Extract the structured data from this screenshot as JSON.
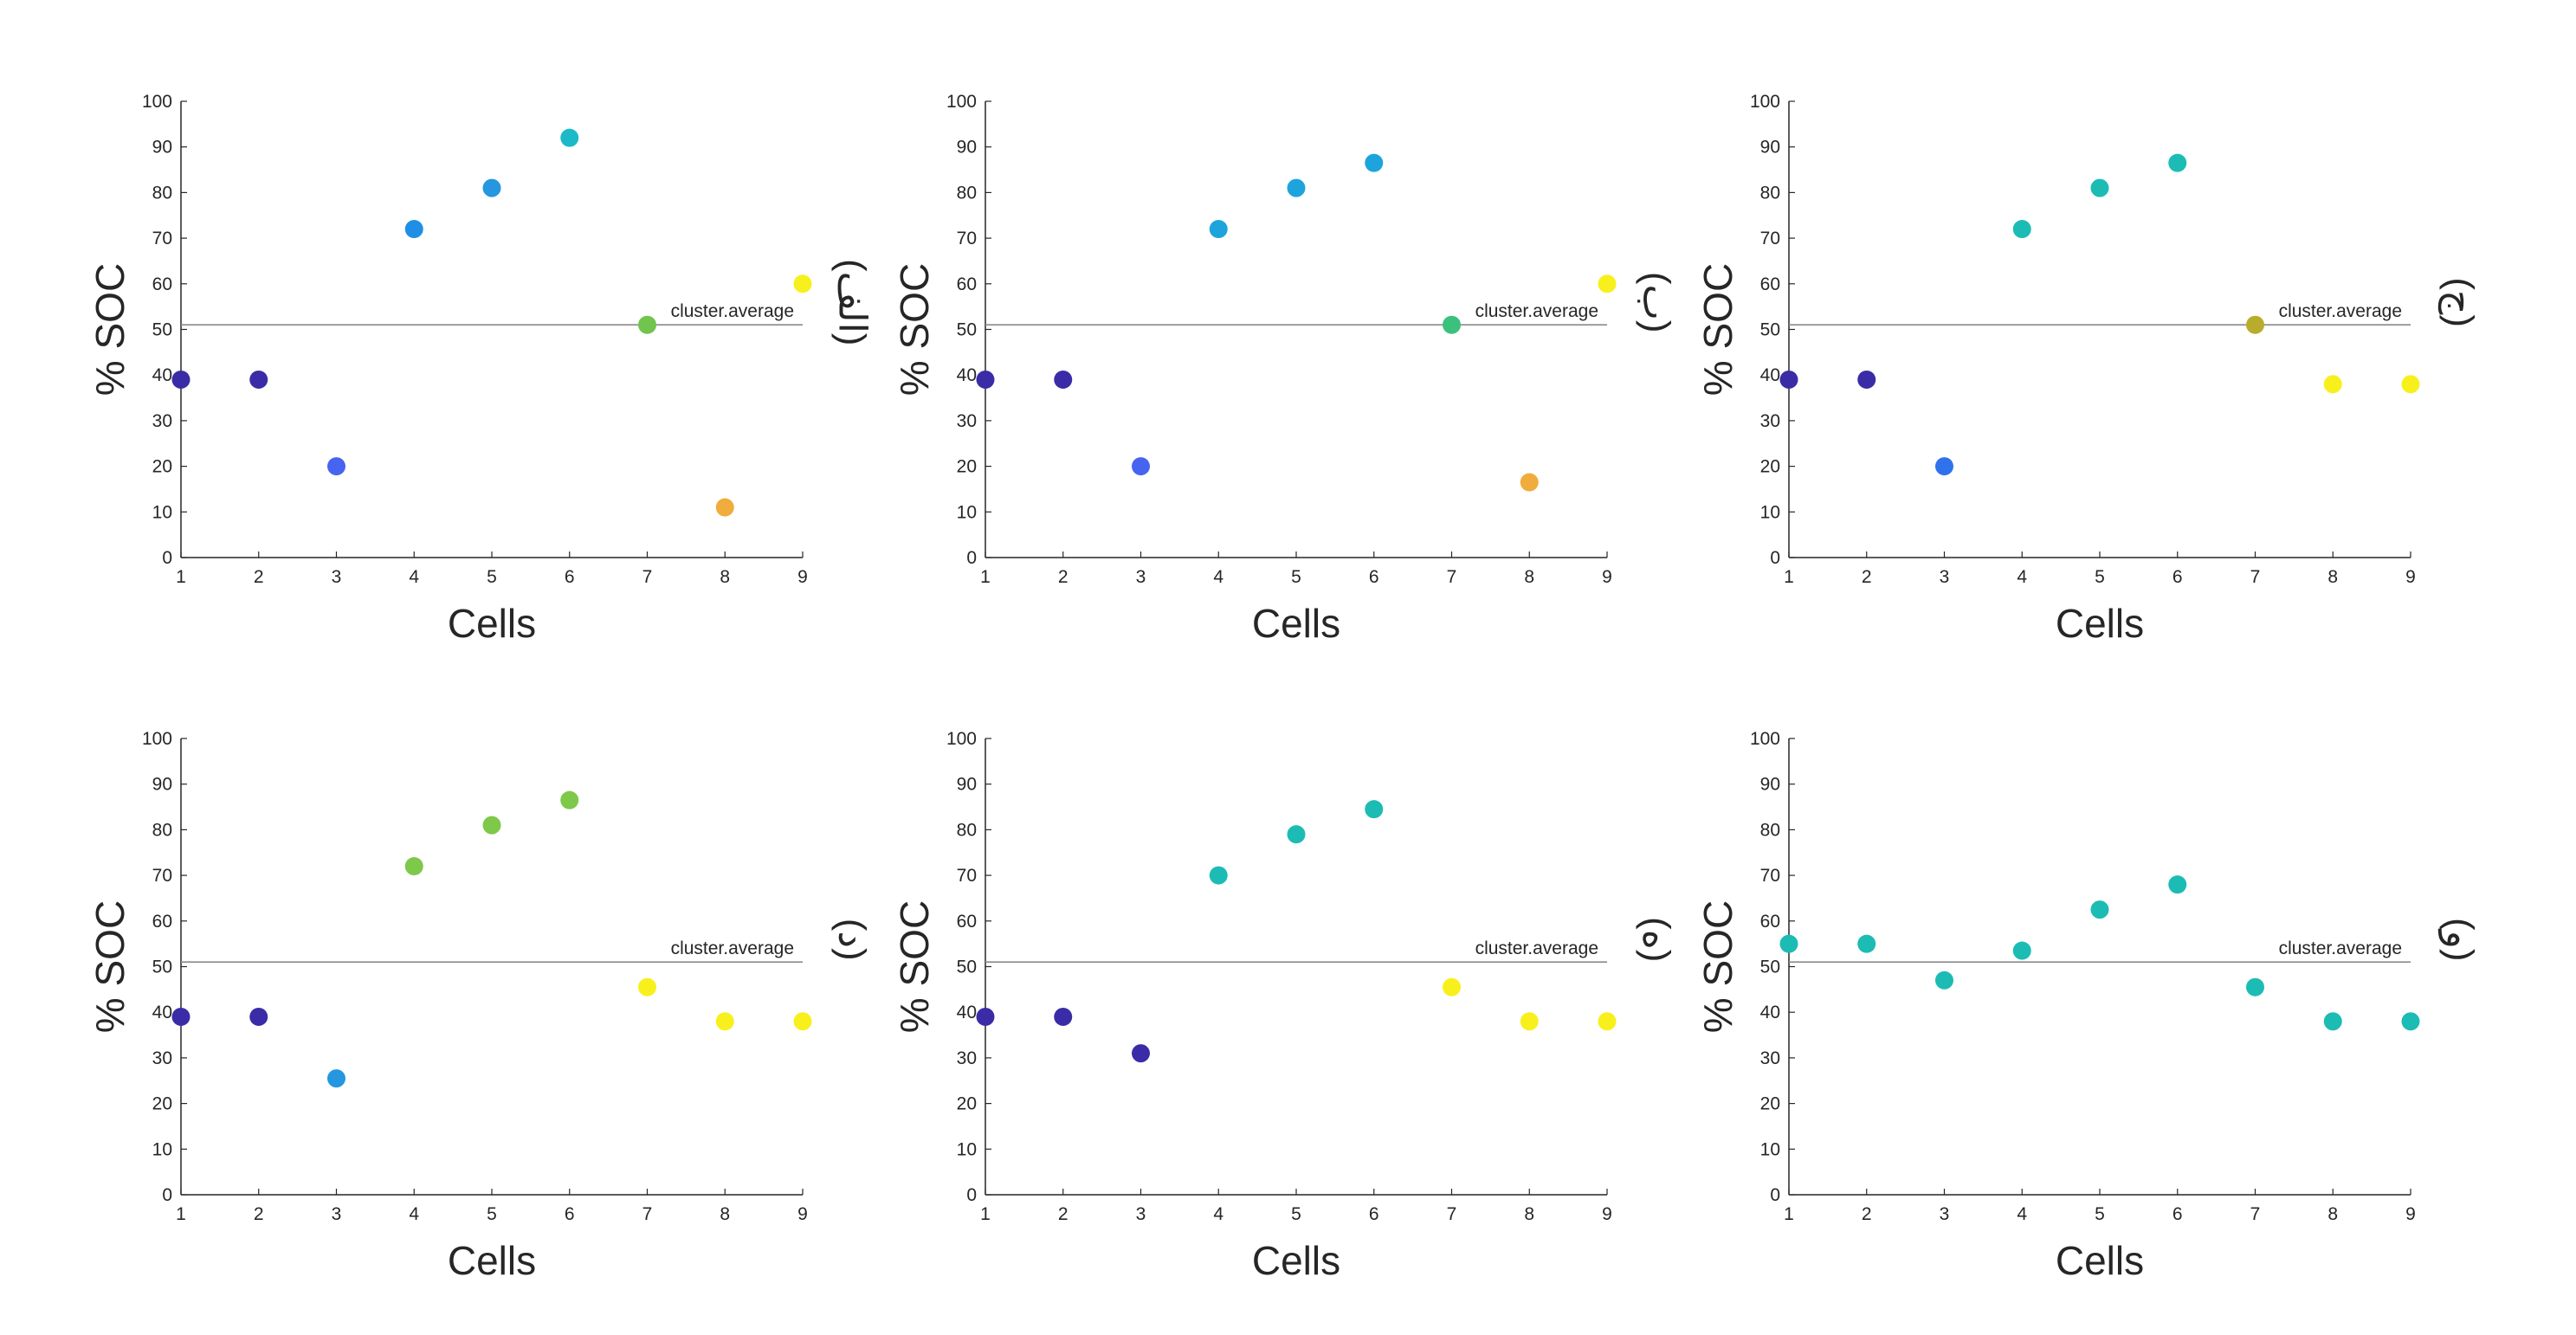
{
  "chart_data": [
    {
      "type": "scatter",
      "panel_label": "(الف)",
      "xlabel": "Cells",
      "ylabel": "% SOC",
      "xlim": [
        1,
        9
      ],
      "ylim": [
        0,
        100
      ],
      "x": [
        1,
        2,
        3,
        4,
        5,
        6,
        7,
        8,
        9
      ],
      "xticks": [
        "1",
        "2",
        "3",
        "4",
        "5",
        "6",
        "7",
        "8",
        "9"
      ],
      "yticks": [
        "0",
        "10",
        "20",
        "30",
        "40",
        "50",
        "60",
        "70",
        "80",
        "90",
        "100"
      ],
      "y": [
        39,
        39,
        20,
        72,
        81,
        92,
        51,
        11,
        60
      ],
      "colors": [
        "#3a2ca6",
        "#3a2ca6",
        "#4764f0",
        "#1f8fe6",
        "#2596e0",
        "#1cbac8",
        "#71c44e",
        "#f0ac3c",
        "#f8f01c"
      ],
      "reference_line": {
        "label": "cluster.average",
        "value": 51
      },
      "grid": false
    },
    {
      "type": "scatter",
      "panel_label": "(ب)",
      "xlabel": "Cells",
      "ylabel": "% SOC",
      "xlim": [
        1,
        9
      ],
      "ylim": [
        0,
        100
      ],
      "x": [
        1,
        2,
        3,
        4,
        5,
        6,
        7,
        8,
        9
      ],
      "xticks": [
        "1",
        "2",
        "3",
        "4",
        "5",
        "6",
        "7",
        "8",
        "9"
      ],
      "yticks": [
        "0",
        "10",
        "20",
        "30",
        "40",
        "50",
        "60",
        "70",
        "80",
        "90",
        "100"
      ],
      "y": [
        39,
        39,
        20,
        72,
        81,
        86.5,
        51,
        16.5,
        60
      ],
      "colors": [
        "#3a2ca6",
        "#3a2ca6",
        "#4764f0",
        "#1ea4dc",
        "#1ea4dc",
        "#1ea4dc",
        "#3cc17c",
        "#f0ac3c",
        "#f8f01c"
      ],
      "reference_line": {
        "label": "cluster.average",
        "value": 51
      },
      "grid": false
    },
    {
      "type": "scatter",
      "panel_label": "(ج)",
      "xlabel": "Cells",
      "ylabel": "% SOC",
      "xlim": [
        1,
        9
      ],
      "ylim": [
        0,
        100
      ],
      "x": [
        1,
        2,
        3,
        4,
        5,
        6,
        7,
        8,
        9
      ],
      "xticks": [
        "1",
        "2",
        "3",
        "4",
        "5",
        "6",
        "7",
        "8",
        "9"
      ],
      "yticks": [
        "0",
        "10",
        "20",
        "30",
        "40",
        "50",
        "60",
        "70",
        "80",
        "90",
        "100"
      ],
      "y": [
        39,
        39,
        20,
        72,
        81,
        86.5,
        51,
        38,
        38
      ],
      "colors": [
        "#3a2ca6",
        "#3a2ca6",
        "#3072ec",
        "#1cbcb4",
        "#1cbcb4",
        "#1cbcb4",
        "#b8ac2c",
        "#f8f01c",
        "#f8f01c"
      ],
      "reference_line": {
        "label": "cluster.average",
        "value": 51
      },
      "grid": false
    },
    {
      "type": "scatter",
      "panel_label": "(د)",
      "xlabel": "Cells",
      "ylabel": "% SOC",
      "xlim": [
        1,
        9
      ],
      "ylim": [
        0,
        100
      ],
      "x": [
        1,
        2,
        3,
        4,
        5,
        6,
        7,
        8,
        9
      ],
      "xticks": [
        "1",
        "2",
        "3",
        "4",
        "5",
        "6",
        "7",
        "8",
        "9"
      ],
      "yticks": [
        "0",
        "10",
        "20",
        "30",
        "40",
        "50",
        "60",
        "70",
        "80",
        "90",
        "100"
      ],
      "y": [
        39,
        39,
        25.5,
        72,
        81,
        86.5,
        45.5,
        38,
        38
      ],
      "colors": [
        "#3a2ca6",
        "#3a2ca6",
        "#2596e0",
        "#7ec84a",
        "#7ec84a",
        "#7ec84a",
        "#f8f01c",
        "#f8f01c",
        "#f8f01c"
      ],
      "reference_line": {
        "label": "cluster.average",
        "value": 51
      },
      "grid": false
    },
    {
      "type": "scatter",
      "panel_label": "(ه)",
      "xlabel": "Cells",
      "ylabel": "% SOC",
      "xlim": [
        1,
        9
      ],
      "ylim": [
        0,
        100
      ],
      "x": [
        1,
        2,
        3,
        4,
        5,
        6,
        7,
        8,
        9
      ],
      "xticks": [
        "1",
        "2",
        "3",
        "4",
        "5",
        "6",
        "7",
        "8",
        "9"
      ],
      "yticks": [
        "0",
        "10",
        "20",
        "30",
        "40",
        "50",
        "60",
        "70",
        "80",
        "90",
        "100"
      ],
      "y": [
        39,
        39,
        31,
        70,
        79,
        84.5,
        45.5,
        38,
        38
      ],
      "colors": [
        "#3a2ca6",
        "#3a2ca6",
        "#3a2ca6",
        "#1cbcb4",
        "#1cbcb4",
        "#1cbcb4",
        "#f8f01c",
        "#f8f01c",
        "#f8f01c"
      ],
      "reference_line": {
        "label": "cluster.average",
        "value": 51
      },
      "grid": false
    },
    {
      "type": "scatter",
      "panel_label": "(و)",
      "xlabel": "Cells",
      "ylabel": "% SOC",
      "xlim": [
        1,
        9
      ],
      "ylim": [
        0,
        100
      ],
      "x": [
        1,
        2,
        3,
        4,
        5,
        6,
        7,
        8,
        9
      ],
      "xticks": [
        "1",
        "2",
        "3",
        "4",
        "5",
        "6",
        "7",
        "8",
        "9"
      ],
      "yticks": [
        "0",
        "10",
        "20",
        "30",
        "40",
        "50",
        "60",
        "70",
        "80",
        "90",
        "100"
      ],
      "y": [
        55,
        55,
        47,
        53.5,
        62.5,
        68,
        45.5,
        38,
        38
      ],
      "colors": [
        "#1cbcb4",
        "#1cbcb4",
        "#1cbcb4",
        "#1cbcb4",
        "#1cbcb4",
        "#1cbcb4",
        "#1cbcb4",
        "#1cbcb4",
        "#1cbcb4"
      ],
      "reference_line": {
        "label": "cluster.average",
        "value": 51
      },
      "grid": false
    }
  ]
}
